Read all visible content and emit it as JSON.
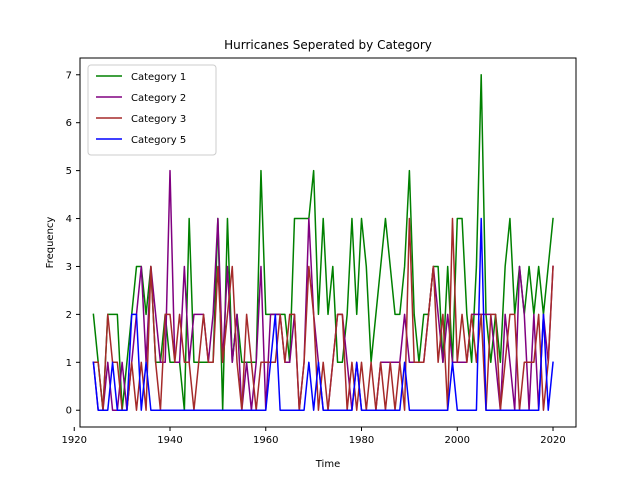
{
  "chart_data": {
    "type": "line",
    "title": "Hurricanes Seperated by Category",
    "xlabel": "Time",
    "ylabel": "Frequency",
    "xlim": [
      1921.2,
      2024.8
    ],
    "ylim": [
      -0.35,
      7.35
    ],
    "xticks": [
      1920,
      1940,
      1960,
      1980,
      2000,
      2020
    ],
    "yticks": [
      0,
      1,
      2,
      3,
      4,
      5,
      6,
      7
    ],
    "grid": false,
    "legend_position": "upper-left",
    "x": [
      1924,
      1925,
      1926,
      1927,
      1928,
      1929,
      1930,
      1931,
      1932,
      1933,
      1934,
      1935,
      1936,
      1937,
      1938,
      1939,
      1940,
      1941,
      1942,
      1943,
      1944,
      1945,
      1946,
      1947,
      1948,
      1949,
      1950,
      1951,
      1952,
      1953,
      1954,
      1955,
      1956,
      1957,
      1958,
      1959,
      1960,
      1961,
      1962,
      1963,
      1964,
      1965,
      1966,
      1967,
      1968,
      1969,
      1970,
      1971,
      1972,
      1973,
      1974,
      1975,
      1976,
      1977,
      1978,
      1979,
      1980,
      1981,
      1982,
      1983,
      1984,
      1985,
      1986,
      1987,
      1988,
      1989,
      1990,
      1991,
      1992,
      1993,
      1994,
      1995,
      1996,
      1997,
      1998,
      1999,
      2000,
      2001,
      2002,
      2003,
      2004,
      2005,
      2006,
      2007,
      2008,
      2009,
      2010,
      2011,
      2012,
      2013,
      2014,
      2015,
      2016,
      2017,
      2018,
      2019,
      2020
    ],
    "series": [
      {
        "name": "Category 1",
        "color": "#008000",
        "values": [
          2,
          1,
          0,
          2,
          2,
          2,
          0,
          1,
          2,
          3,
          3,
          2,
          3,
          1,
          1,
          2,
          1,
          1,
          1,
          0,
          4,
          1,
          1,
          1,
          1,
          1,
          4,
          0,
          4,
          1,
          2,
          1,
          1,
          1,
          1,
          5,
          2,
          2,
          2,
          2,
          2,
          1,
          4,
          4,
          4,
          4,
          5,
          2,
          4,
          2,
          3,
          1,
          1,
          2,
          4,
          2,
          4,
          3,
          1,
          2,
          3,
          4,
          3,
          2,
          2,
          3,
          5,
          2,
          1,
          2,
          2,
          3,
          3,
          1,
          3,
          1,
          4,
          4,
          2,
          1,
          3,
          7,
          2,
          1,
          2,
          1,
          3,
          4,
          2,
          3,
          2,
          3,
          2,
          3,
          2,
          3,
          4
        ]
      },
      {
        "name": "Category 2",
        "color": "#800080",
        "values": [
          1,
          0,
          0,
          1,
          0,
          0,
          1,
          0,
          1,
          2,
          3,
          1,
          3,
          2,
          1,
          1,
          5,
          1,
          1,
          3,
          1,
          2,
          2,
          2,
          1,
          2,
          4,
          1,
          3,
          1,
          2,
          0,
          1,
          0,
          1,
          3,
          0,
          2,
          2,
          2,
          1,
          1,
          2,
          0,
          1,
          4,
          2,
          1,
          0,
          0,
          1,
          2,
          2,
          1,
          0,
          1,
          0,
          0,
          0,
          0,
          1,
          1,
          1,
          1,
          1,
          2,
          1,
          1,
          1,
          1,
          2,
          3,
          2,
          1,
          2,
          1,
          1,
          1,
          1,
          2,
          2,
          2,
          2,
          2,
          1,
          0,
          2,
          1,
          0,
          3,
          2,
          0,
          2,
          0,
          2,
          1,
          3
        ]
      },
      {
        "name": "Category 3",
        "color": "#a52a2a",
        "values": [
          1,
          1,
          0,
          2,
          1,
          1,
          0,
          0,
          1,
          0,
          1,
          0,
          3,
          1,
          0,
          2,
          2,
          1,
          2,
          1,
          1,
          0,
          1,
          2,
          1,
          1,
          3,
          1,
          2,
          3,
          1,
          0,
          2,
          1,
          0,
          1,
          1,
          1,
          1,
          2,
          1,
          2,
          2,
          0,
          1,
          3,
          2,
          0,
          1,
          0,
          1,
          2,
          2,
          0,
          1,
          0,
          1,
          0,
          1,
          0,
          1,
          0,
          1,
          0,
          1,
          0,
          4,
          1,
          1,
          1,
          2,
          3,
          1,
          2,
          0,
          4,
          1,
          2,
          1,
          2,
          1,
          2,
          0,
          2,
          2,
          0,
          1,
          2,
          2,
          0,
          1,
          1,
          1,
          2,
          0,
          1,
          3
        ]
      },
      {
        "name": "Category 5",
        "color": "#0000ff",
        "values": [
          1,
          0,
          0,
          0,
          1,
          0,
          0,
          0,
          2,
          2,
          0,
          1,
          0,
          0,
          0,
          0,
          0,
          0,
          0,
          0,
          0,
          0,
          0,
          0,
          0,
          0,
          0,
          0,
          0,
          0,
          0,
          0,
          0,
          0,
          0,
          0,
          0,
          1,
          2,
          0,
          0,
          0,
          0,
          0,
          0,
          1,
          0,
          1,
          0,
          0,
          0,
          0,
          0,
          0,
          0,
          1,
          0,
          0,
          0,
          0,
          0,
          0,
          0,
          0,
          0,
          1,
          0,
          0,
          0,
          0,
          0,
          0,
          0,
          0,
          0,
          1,
          0,
          0,
          0,
          0,
          0,
          4,
          0,
          0,
          0,
          0,
          0,
          0,
          0,
          0,
          0,
          0,
          0,
          0,
          2,
          0,
          1
        ]
      }
    ]
  }
}
